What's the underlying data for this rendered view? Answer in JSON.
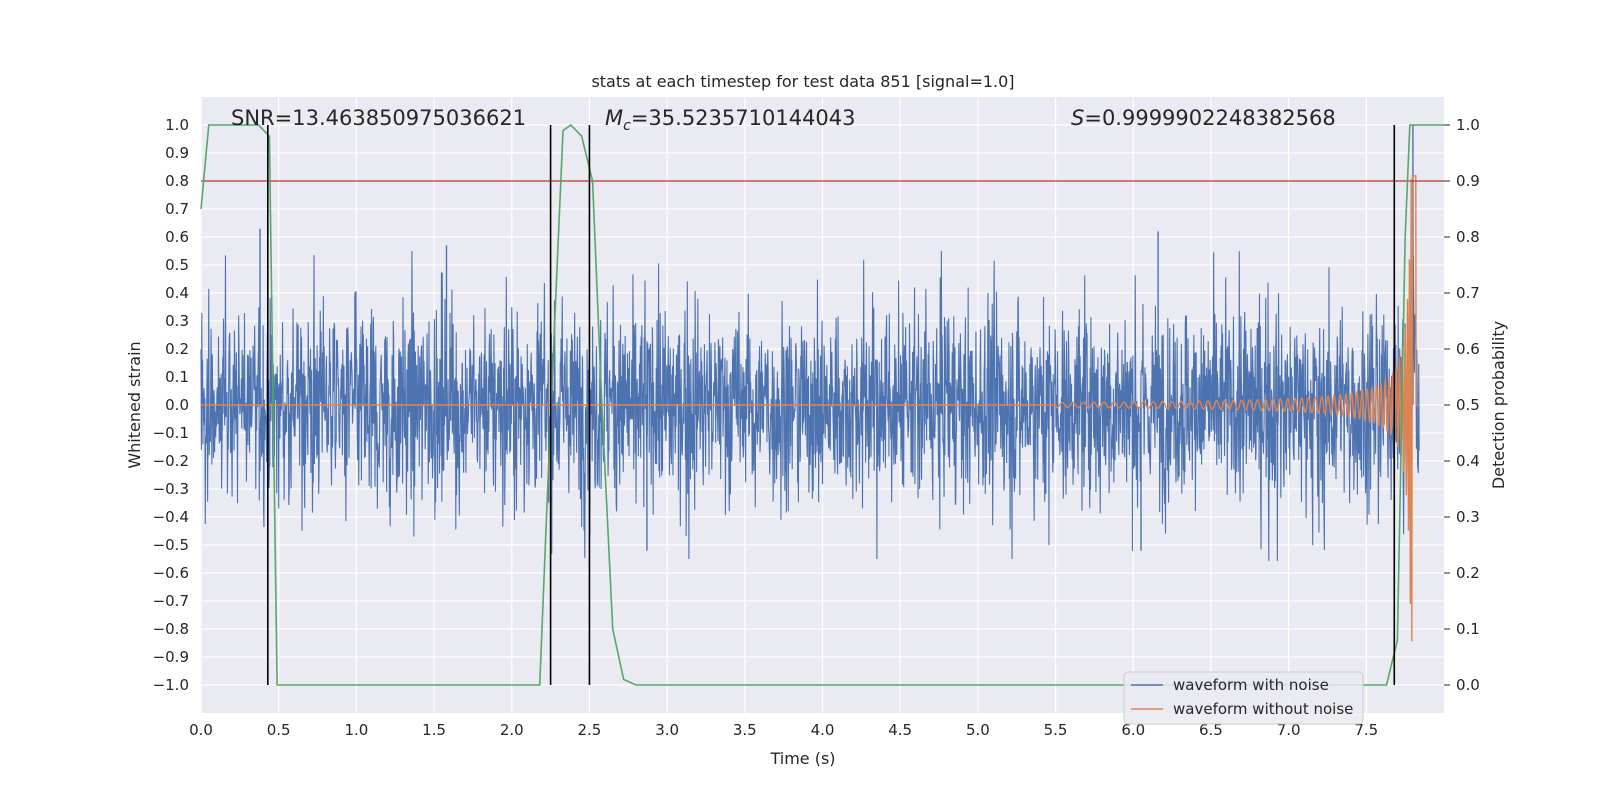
{
  "chart_data": {
    "type": "line",
    "title": "stats at each timestep for test data 851 [signal=1.0]",
    "xlabel": "Time (s)",
    "ylabel": "Whitened strain",
    "y2label": "Detection probability",
    "xlim": [
      0.0,
      8.0
    ],
    "ylim": [
      -1.1,
      1.1
    ],
    "y2lim": [
      -0.05,
      1.05
    ],
    "x_ticks": [
      "0.0",
      "0.5",
      "1.0",
      "1.5",
      "2.0",
      "2.5",
      "3.0",
      "3.5",
      "4.0",
      "4.5",
      "5.0",
      "5.5",
      "6.0",
      "6.5",
      "7.0",
      "7.5"
    ],
    "y_ticks": [
      "1.0",
      "0.9",
      "0.8",
      "0.7",
      "0.6",
      "0.5",
      "0.4",
      "0.3",
      "0.2",
      "0.1",
      "0.0",
      "−0.1",
      "−0.2",
      "−0.3",
      "−0.4",
      "−0.5",
      "−0.6",
      "−0.7",
      "−0.8",
      "−0.9",
      "−1.0"
    ],
    "y2_ticks": [
      "1.0",
      "0.9",
      "0.8",
      "0.7",
      "0.6",
      "0.5",
      "0.4",
      "0.3",
      "0.2",
      "0.1",
      "0.0"
    ],
    "grid": true,
    "legend_position": "lower-right",
    "annotations": {
      "snr": "SNR=13.463850975036621",
      "mc_symbol": "M",
      "mc_sub": "c",
      "mc_value": "=35.5235710144043",
      "s_symbol": "S",
      "s_value": "=0.9999902248382568"
    },
    "threshold": {
      "y2": 0.9,
      "color": "#c44e52"
    },
    "vertical_lines": [
      0.43,
      2.25,
      2.5,
      7.68
    ],
    "series": [
      {
        "name": "waveform with noise",
        "color": "#4c72b0",
        "noise_envelope": {
          "typical_amplitude": 0.28,
          "peak_amplitude": 0.55
        },
        "peaks": [
          {
            "x": 0.38,
            "y": 0.63
          },
          {
            "x": 1.58,
            "y": 0.57
          },
          {
            "x": 6.16,
            "y": 0.62
          },
          {
            "x": 2.87,
            "y": -0.52
          },
          {
            "x": 6.05,
            "y": -0.52
          },
          {
            "x": 7.8,
            "y": 1.0
          }
        ]
      },
      {
        "name": "waveform without noise",
        "color": "#dd8452",
        "chirp": {
          "start_time": 5.5,
          "merger_time": 7.8,
          "peak_amplitude": 0.85
        }
      },
      {
        "name": "detection probability",
        "color": "#55a868",
        "axis": "y2",
        "points": [
          [
            0.0,
            0.85
          ],
          [
            0.05,
            1.0
          ],
          [
            0.37,
            1.0
          ],
          [
            0.44,
            0.98
          ],
          [
            0.49,
            0.0
          ],
          [
            2.18,
            0.0
          ],
          [
            2.25,
            0.48
          ],
          [
            2.33,
            0.99
          ],
          [
            2.38,
            1.0
          ],
          [
            2.45,
            0.98
          ],
          [
            2.52,
            0.9
          ],
          [
            2.58,
            0.5
          ],
          [
            2.65,
            0.1
          ],
          [
            2.72,
            0.01
          ],
          [
            2.8,
            0.0
          ],
          [
            3.0,
            0.0
          ],
          [
            7.63,
            0.0
          ],
          [
            7.7,
            0.08
          ],
          [
            7.75,
            0.8
          ],
          [
            7.78,
            1.0
          ],
          [
            8.0,
            1.0
          ]
        ]
      }
    ]
  },
  "styles": {
    "plot_background": "#eaeaf2",
    "grid_color": "#ffffff",
    "vertical_line_color": "#000000"
  }
}
